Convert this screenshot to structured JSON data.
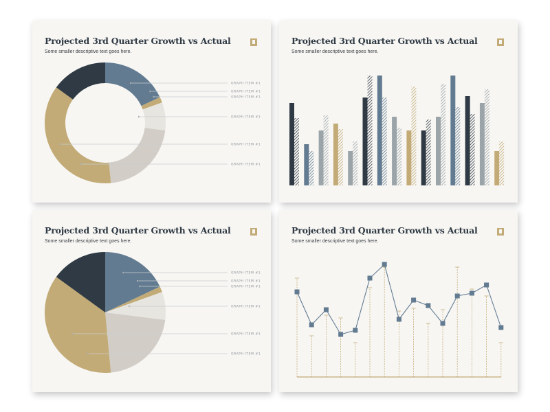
{
  "colors": {
    "navy": "#2f3a44",
    "slate": "#627b91",
    "gold": "#c2ab76",
    "light_gray": "#e6e5e0",
    "taupe": "#d2cdc7",
    "gray": "#9ba4a8",
    "peach": "#e9dac9",
    "card_bg": "#f7f6f3"
  },
  "cards": [
    {
      "title": "Projected 3rd Quarter Growth vs Actual",
      "subtitle": "Some smaller descriptive text goes here."
    },
    {
      "title": "Projected 3rd Quarter Growth vs Actual",
      "subtitle": "Some smaller descriptive text goes here."
    },
    {
      "title": "Projected 3rd Quarter Growth vs Actual",
      "subtitle": "Some smaller descriptive text goes here."
    },
    {
      "title": "Projected 3rd Quarter Growth vs Actual",
      "subtitle": "Some smaller descriptive text goes here."
    }
  ],
  "icons": {
    "bookmark": "bookmark-icon"
  },
  "chart_data": [
    {
      "type": "pie",
      "style": "donut",
      "slices": [
        {
          "value": 18.0,
          "label": "GRAPH ITEM #1",
          "color": "#627b91"
        },
        {
          "value": 1.5,
          "label": "GRAPH ITEM #1",
          "color": "#c2ab76"
        },
        {
          "value": 7.5,
          "label": "GRAPH ITEM #1",
          "color": "#e6e5e0"
        },
        {
          "value": 21.5,
          "label": "GRAPH ITEM #1",
          "color": "#d2cdc7"
        },
        {
          "value": 36.5,
          "label": "GRAPH ITEM #1",
          "color": "#c2ab76"
        },
        {
          "value": 15.0,
          "label": "GRAPH ITEM #1",
          "color": "#2f3a44"
        }
      ]
    },
    {
      "type": "bar",
      "style": "paired bars, solid = projected, hatched = actual",
      "groups": [
        {
          "projected": 60,
          "actual": 49,
          "color": "#2f3a44"
        },
        {
          "projected": 30,
          "actual": 25,
          "color": "#627b91"
        },
        {
          "projected": 40,
          "actual": 51,
          "color": "#9ba4a8"
        },
        {
          "projected": 45,
          "actual": 41,
          "color": "#c2ab76"
        },
        {
          "projected": 25,
          "actual": 32,
          "color": "#9ba4a8"
        },
        {
          "projected": 64,
          "actual": 80,
          "color": "#2f3a44"
        },
        {
          "projected": 80,
          "actual": 64,
          "color": "#627b91"
        },
        {
          "projected": 50,
          "actual": 42,
          "color": "#9ba4a8"
        },
        {
          "projected": 40,
          "actual": 72,
          "color": "#c2ab76"
        },
        {
          "projected": 40,
          "actual": 48,
          "color": "#2f3a44"
        },
        {
          "projected": 50,
          "actual": 74,
          "color": "#9ba4a8"
        },
        {
          "projected": 80,
          "actual": 57,
          "color": "#627b91"
        },
        {
          "projected": 65,
          "actual": 52,
          "color": "#2f3a44"
        },
        {
          "projected": 60,
          "actual": 70,
          "color": "#9ba4a8"
        },
        {
          "projected": 25,
          "actual": 32,
          "color": "#c2ab76"
        }
      ],
      "ylim": [
        0,
        90
      ]
    },
    {
      "type": "pie",
      "slices": [
        {
          "value": 18.0,
          "label": "GRAPH ITEM #1",
          "color": "#627b91"
        },
        {
          "value": 1.5,
          "label": "GRAPH ITEM #1",
          "color": "#c2ab76"
        },
        {
          "value": 7.5,
          "label": "GRAPH ITEM #1",
          "color": "#e6e5e0"
        },
        {
          "value": 21.5,
          "label": "GRAPH ITEM #1",
          "color": "#d2cdc7"
        },
        {
          "value": 36.5,
          "label": "GRAPH ITEM #1",
          "color": "#c2ab76"
        },
        {
          "value": 15.0,
          "label": "GRAPH ITEM #1",
          "color": "#2f3a44"
        }
      ]
    },
    {
      "type": "line",
      "style": "line with square markers plus dashed projected stems",
      "x": [
        1,
        2,
        3,
        4,
        5,
        6,
        7,
        8,
        9,
        10,
        11,
        12,
        13,
        14,
        15
      ],
      "series": [
        {
          "values": [
            62,
            38,
            49,
            31,
            34,
            72,
            82,
            42,
            56,
            52,
            39,
            59,
            61,
            67,
            36
          ],
          "color": "#627b91"
        }
      ],
      "projected": [
        72,
        30,
        45,
        43,
        25,
        65,
        80,
        48,
        50,
        39,
        49,
        80,
        64,
        59,
        25
      ],
      "ylim": [
        0,
        90
      ]
    }
  ]
}
